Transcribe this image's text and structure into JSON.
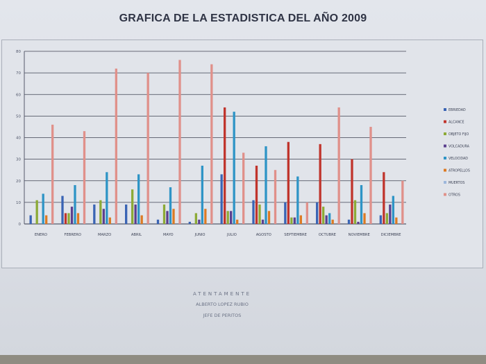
{
  "chart_data": {
    "type": "bar",
    "title": "GRAFICA DE LA ESTADISTICA DEL AÑO 2009",
    "xlabel": "",
    "ylabel": "",
    "ylim": [
      0,
      80
    ],
    "yticks": [
      0,
      10,
      20,
      30,
      40,
      50,
      60,
      70,
      80
    ],
    "grid": true,
    "legend_position": "right",
    "categories": [
      "ENERO",
      "FEBRERO",
      "MARZO",
      "ABRIL",
      "MAYO",
      "JUNIO",
      "JULIO",
      "AGOSTO",
      "SEPTIEMBRE",
      "OCTUBRE",
      "NOVIEMBRE",
      "DICIEMBRE"
    ],
    "series": [
      {
        "name": "EBRIEDAD",
        "color": "#3a64b4",
        "values": [
          4,
          13,
          9,
          9,
          2,
          1,
          23,
          11,
          10,
          10,
          2,
          4
        ]
      },
      {
        "name": "ALCANCE",
        "color": "#c0342c",
        "values": [
          0,
          5,
          0,
          0,
          0,
          0,
          54,
          27,
          38,
          37,
          30,
          24
        ]
      },
      {
        "name": "OBJETO FIJO",
        "color": "#8caa36",
        "values": [
          11,
          5,
          11,
          16,
          9,
          5,
          6,
          9,
          3,
          8,
          11,
          5
        ]
      },
      {
        "name": "VOLCADURA",
        "color": "#5b3f8e",
        "values": [
          0,
          8,
          7,
          9,
          6,
          2,
          6,
          2,
          3,
          4,
          1,
          9
        ]
      },
      {
        "name": "VELOCIDAD",
        "color": "#2e94c6",
        "values": [
          14,
          18,
          24,
          23,
          17,
          27,
          52,
          36,
          22,
          5,
          18,
          13
        ]
      },
      {
        "name": "ATROPELLOS",
        "color": "#dc7a24",
        "values": [
          4,
          5,
          3,
          4,
          7,
          7,
          2,
          6,
          4,
          2,
          5,
          3
        ]
      },
      {
        "name": "MUERTOS",
        "color": "#9db7dc",
        "values": [
          0,
          0,
          0,
          0,
          0,
          0,
          0,
          0,
          0,
          0,
          0,
          0
        ]
      },
      {
        "name": "OTROS",
        "color": "#e0908a",
        "values": [
          46,
          43,
          72,
          70,
          76,
          74,
          33,
          25,
          10,
          54,
          45,
          20
        ]
      }
    ]
  },
  "footer": {
    "closing": "ATENTAMENTE",
    "name": "ALBERTO LOPEZ RUBIO",
    "role": "JEFE DE PERITOS"
  }
}
